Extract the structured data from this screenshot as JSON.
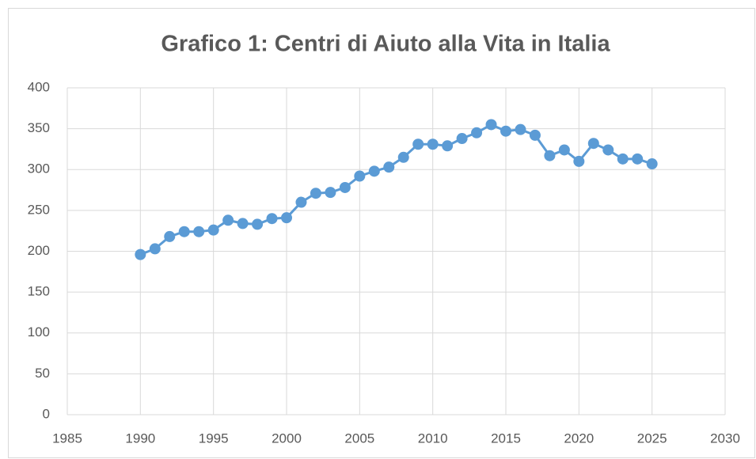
{
  "chart_data": {
    "type": "line",
    "title": "Grafico 1: Centri di Aiuto alla Vita in Italia",
    "x": [
      1990,
      1991,
      1992,
      1993,
      1994,
      1995,
      1996,
      1997,
      1998,
      1999,
      2000,
      2001,
      2002,
      2003,
      2004,
      2005,
      2006,
      2007,
      2008,
      2009,
      2010,
      2011,
      2012,
      2013,
      2014,
      2015,
      2016,
      2017,
      2018,
      2019,
      2020,
      2021,
      2022,
      2023,
      2024,
      2025
    ],
    "series": [
      {
        "color": "#5b9bd5",
        "values": [
          196,
          203,
          218,
          224,
          224,
          226,
          238,
          234,
          233,
          240,
          241,
          260,
          271,
          272,
          278,
          292,
          298,
          303,
          315,
          331,
          331,
          329,
          338,
          345,
          355,
          347,
          349,
          342,
          317,
          324,
          310,
          332,
          324,
          313,
          313,
          307
        ]
      }
    ],
    "xlim": [
      1985,
      2030
    ],
    "xticks": [
      1985,
      1990,
      1995,
      2000,
      2005,
      2010,
      2015,
      2020,
      2025,
      2030
    ],
    "ylim": [
      0,
      400
    ],
    "yticks": [
      0,
      50,
      100,
      150,
      200,
      250,
      300,
      350,
      400
    ],
    "grid": true
  }
}
